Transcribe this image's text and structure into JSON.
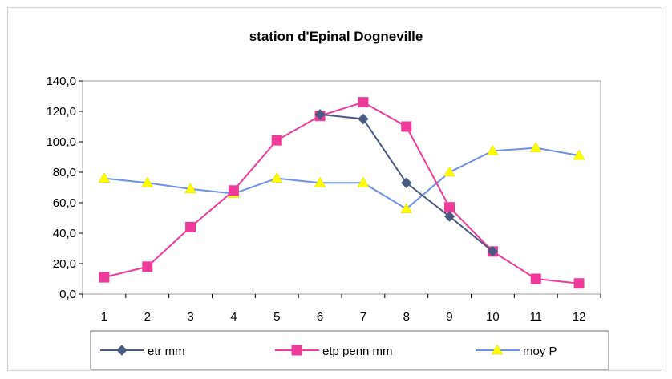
{
  "chart_data": {
    "type": "line",
    "title": "station d'Epinal Dogneville",
    "categories": [
      "1",
      "2",
      "3",
      "4",
      "5",
      "6",
      "7",
      "8",
      "9",
      "10",
      "11",
      "12"
    ],
    "ylim": [
      0,
      140
    ],
    "yticks": [
      "0,0",
      "20,0",
      "40,0",
      "60,0",
      "80,0",
      "100,0",
      "120,0",
      "140,0"
    ],
    "grid": false,
    "legend_position": "bottom",
    "series": [
      {
        "name": "etr mm",
        "color": "#4a5a80",
        "marker": "diamond",
        "values": [
          null,
          null,
          null,
          null,
          null,
          118,
          115,
          73,
          51,
          28,
          null,
          null
        ]
      },
      {
        "name": "etp penn mm",
        "color": "#ee3b9a",
        "marker": "square",
        "values": [
          11,
          18,
          44,
          68,
          101,
          117,
          126,
          110,
          57,
          28,
          10,
          7
        ]
      },
      {
        "name": "moy  P",
        "color": "#6f90e8",
        "marker": "triangle",
        "marker_color": "#ffff00",
        "values": [
          76,
          73,
          69,
          66,
          76,
          73,
          73,
          56,
          80,
          94,
          96,
          91
        ]
      }
    ]
  }
}
